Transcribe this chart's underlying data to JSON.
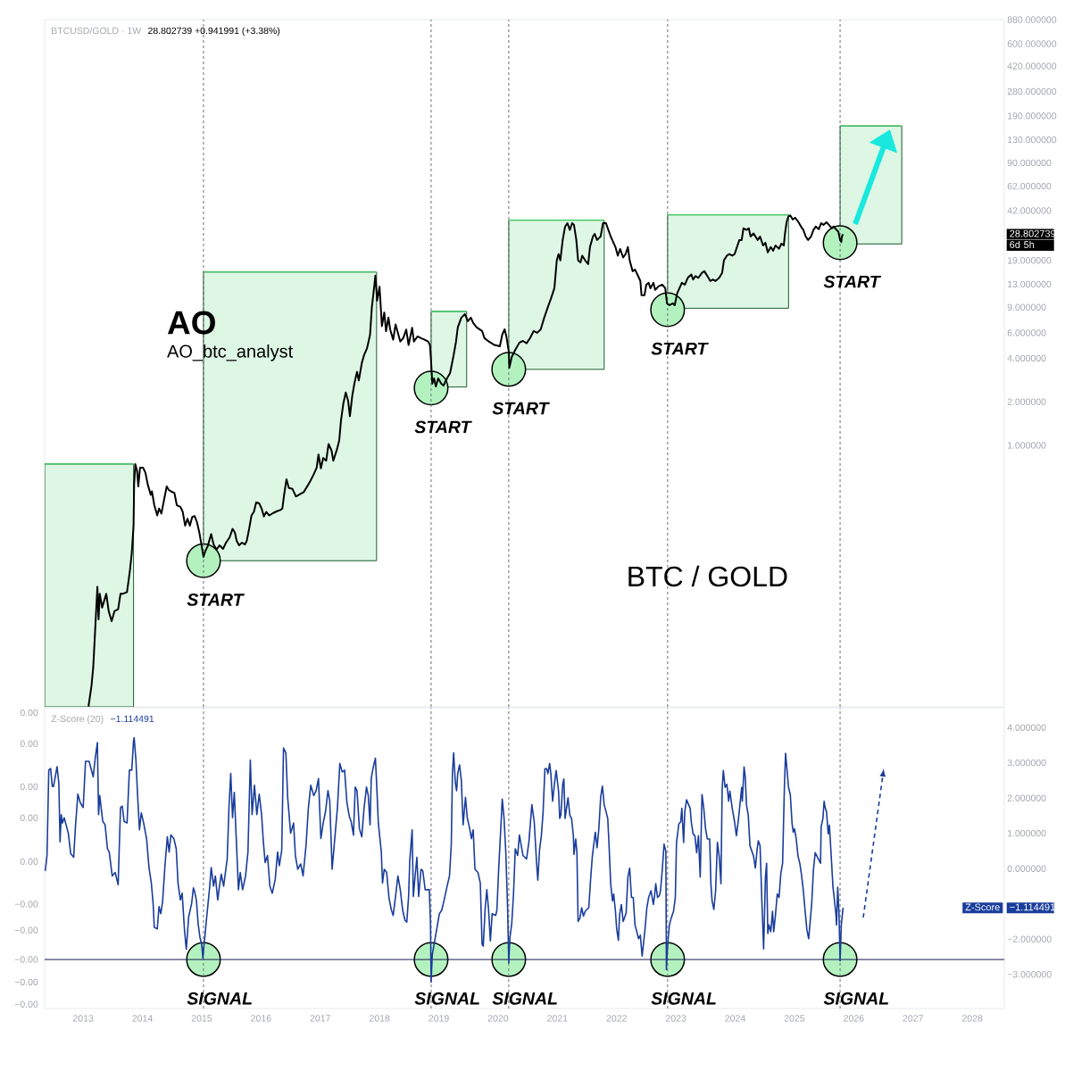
{
  "chart_data": [
    {
      "type": "line",
      "title": "BTCUSD/GOLD · 1W",
      "subtitle": "28.802739 +0.941991 (+3.38%)",
      "annotations": [
        "AO",
        "AO_btc_analyst",
        "BTC / GOLD",
        {
          "text": "START",
          "x": 2015.03,
          "y": 0.159
        },
        {
          "text": "START",
          "x": 2018.87,
          "y": 2.49
        },
        {
          "text": "START",
          "x": 2020.18,
          "y": 3.35
        },
        {
          "text": "START",
          "x": 2022.86,
          "y": 8.67
        },
        {
          "text": "START",
          "x": 2025.77,
          "y": 25.2
        },
        "28.802739",
        "6d 5h"
      ],
      "xlim": [
        2012.35,
        2028.54
      ],
      "ylim": [
        0.0155,
        880
      ],
      "log": "y",
      "tick_labels": "y",
      "yticks": [
        {
          "value": 880,
          "label": "880.000000"
        },
        {
          "value": 600,
          "label": "600.000000"
        },
        {
          "value": 420,
          "label": "420.000000"
        },
        {
          "value": 280,
          "label": "280.000000"
        },
        {
          "value": 190,
          "label": "190.000000"
        },
        {
          "value": 130,
          "label": "130.000000"
        },
        {
          "value": 90,
          "label": "90.000000"
        },
        {
          "value": 62,
          "label": "62.000000"
        },
        {
          "value": 42,
          "label": "42.000000"
        },
        {
          "value": 19,
          "label": "19.000000"
        },
        {
          "value": 13,
          "label": "13.000000"
        },
        {
          "value": 9,
          "label": "9.000000"
        },
        {
          "value": 6,
          "label": "6.000000"
        },
        {
          "value": 4,
          "label": "4.000000"
        },
        {
          "value": 2,
          "label": "2.000000"
        },
        {
          "value": 1,
          "label": "1.000000"
        }
      ],
      "ref_lines": [
        {
          "axis": "x",
          "value": 2015.03,
          "color": "#6a6d78",
          "line_style": "dashed"
        },
        {
          "axis": "x",
          "value": 2018.87,
          "color": "#6a6d78",
          "line_style": "dashed"
        },
        {
          "axis": "x",
          "value": 2020.18,
          "color": "#6a6d78",
          "line_style": "dashed"
        },
        {
          "axis": "x",
          "value": 2022.86,
          "color": "#6a6d78",
          "line_style": "dashed"
        },
        {
          "axis": "x",
          "value": 2025.77,
          "color": "#6a6d78",
          "line_style": "dashed"
        }
      ],
      "series": [
        {
          "type": "line",
          "color": "#3ccf63",
          "x": [
            2012.35,
            2013.85
          ],
          "values": [
            0.742,
            0.742
          ],
          "lower": [
            0.0155,
            0.0155
          ],
          "upper": [
            0.742,
            0.742
          ]
        },
        {
          "type": "line",
          "color": "#3ccf63",
          "x": [
            2015.03,
            2017.95
          ],
          "values": [
            15.8,
            15.8
          ],
          "lower": [
            0.159,
            0.159
          ],
          "upper": [
            15.8,
            15.8
          ]
        },
        {
          "type": "line",
          "color": "#3ccf63",
          "x": [
            2018.87,
            2019.47
          ],
          "values": [
            8.43,
            8.43
          ],
          "lower": [
            2.53,
            2.53
          ],
          "upper": [
            8.43,
            8.43
          ]
        },
        {
          "type": "line",
          "color": "#3ccf63",
          "x": [
            2020.18,
            2021.79
          ],
          "values": [
            36.1,
            36.1
          ],
          "lower": [
            3.35,
            3.35
          ],
          "upper": [
            36.1,
            36.1
          ]
        },
        {
          "type": "line",
          "color": "#3ccf63",
          "x": [
            2022.86,
            2024.9
          ],
          "values": [
            39.3,
            39.3
          ],
          "lower": [
            8.87,
            8.87
          ],
          "upper": [
            39.3,
            39.3
          ]
        },
        {
          "type": "line",
          "color": "#3ccf63",
          "x": [
            2025.77,
            2026.81
          ],
          "values": [
            161.7,
            161.7
          ],
          "lower": [
            24.7,
            24.7
          ],
          "upper": [
            161.7,
            161.7
          ]
        },
        {
          "type": "scatter",
          "marker": "circle",
          "color": "#b3f2bf",
          "x": [
            2015.03,
            2018.87,
            2020.18,
            2022.86,
            2025.77
          ],
          "values": [
            0.159,
            2.49,
            3.35,
            8.67,
            25.2
          ]
        },
        {
          "type": "line",
          "color": "#000000",
          "x": [
            2013.09,
            2013.14,
            2013.17,
            2013.24,
            2013.26,
            2013.28,
            2013.32,
            2013.39,
            2013.43,
            2013.48,
            2013.53,
            2013.59,
            2013.63,
            2013.67,
            2013.74,
            2013.79,
            2013.82,
            2013.85,
            2013.86,
            2013.88,
            2013.91,
            2013.93,
            2013.96,
            2014.01,
            2014.05,
            2014.09,
            2014.14,
            2014.16,
            2014.2,
            2014.25,
            2014.28,
            2014.32,
            2014.37,
            2014.41,
            2014.44,
            2014.48,
            2014.54,
            2014.58,
            2014.64,
            2014.68,
            2014.72,
            2014.76,
            2014.8,
            2014.84,
            2014.88,
            2014.92,
            2014.96,
            2015.0,
            2015.03,
            2015.06,
            2015.1,
            2015.16,
            2015.2,
            2015.25,
            2015.3,
            2015.36,
            2015.41,
            2015.47,
            2015.52,
            2015.56,
            2015.59,
            2015.63,
            2015.68,
            2015.73,
            2015.76,
            2015.8,
            2015.84,
            2015.88,
            2015.92,
            2015.97,
            2016.01,
            2016.05,
            2016.09,
            2016.14,
            2016.2,
            2016.27,
            2016.33,
            2016.36,
            2016.39,
            2016.43,
            2016.47,
            2016.53,
            2016.59,
            2016.66,
            2016.72,
            2016.78,
            2016.83,
            2016.89,
            2016.94,
            2016.97,
            2017.01,
            2017.05,
            2017.1,
            2017.14,
            2017.19,
            2017.22,
            2017.28,
            2017.32,
            2017.35,
            2017.39,
            2017.43,
            2017.47,
            2017.5,
            2017.54,
            2017.58,
            2017.62,
            2017.65,
            2017.7,
            2017.74,
            2017.79,
            2017.84,
            2017.87,
            2017.91,
            2017.93,
            2017.96,
            2018.0,
            2018.04,
            2018.08,
            2018.11,
            2018.15,
            2018.18,
            2018.23,
            2018.27,
            2018.31,
            2018.35,
            2018.4,
            2018.45,
            2018.49,
            2018.55,
            2018.58,
            2018.64,
            2018.7,
            2018.76,
            2018.82,
            2018.85,
            2018.87,
            2018.89,
            2018.92,
            2018.95,
            2018.99,
            2019.04,
            2019.08,
            2019.13,
            2019.19,
            2019.25,
            2019.29,
            2019.32,
            2019.38,
            2019.44,
            2019.49,
            2019.54,
            2019.58,
            2019.64,
            2019.73,
            2019.77,
            2019.85,
            2019.94,
            2020.03,
            2020.07,
            2020.11,
            2020.14,
            2020.18,
            2020.19,
            2020.23,
            2020.29,
            2020.36,
            2020.42,
            2020.48,
            2020.54,
            2020.6,
            2020.66,
            2020.72,
            2020.77,
            2020.83,
            2020.89,
            2020.95,
            2020.99,
            2021.02,
            2021.05,
            2021.09,
            2021.13,
            2021.17,
            2021.21,
            2021.25,
            2021.28,
            2021.32,
            2021.35,
            2021.39,
            2021.42,
            2021.47,
            2021.52,
            2021.55,
            2021.6,
            2021.63,
            2021.67,
            2021.73,
            2021.77,
            2021.82,
            2021.86,
            2021.9,
            2021.98,
            2022.02,
            2022.06,
            2022.11,
            2022.15,
            2022.19,
            2022.22,
            2022.27,
            2022.31,
            2022.35,
            2022.4,
            2022.42,
            2022.47,
            2022.5,
            2022.54,
            2022.57,
            2022.62,
            2022.65,
            2022.71,
            2022.77,
            2022.82,
            2022.85,
            2022.89,
            2022.95,
            2022.98,
            2023.02,
            2023.06,
            2023.1,
            2023.15,
            2023.2,
            2023.26,
            2023.29,
            2023.33,
            2023.38,
            2023.44,
            2023.48,
            2023.53,
            2023.58,
            2023.62,
            2023.67,
            2023.73,
            2023.78,
            2023.81,
            2023.86,
            2023.9,
            2023.95,
            2023.99,
            2024.03,
            2024.07,
            2024.11,
            2024.14,
            2024.19,
            2024.23,
            2024.26,
            2024.31,
            2024.38,
            2024.42,
            2024.47,
            2024.51,
            2024.55,
            2024.6,
            2024.64,
            2024.68,
            2024.74,
            2024.78,
            2024.82,
            2024.84,
            2024.87,
            2024.9,
            2024.93,
            2024.97,
            2025.01,
            2025.06,
            2025.11,
            2025.15,
            2025.19,
            2025.23,
            2025.28,
            2025.32,
            2025.36,
            2025.41,
            2025.45,
            2025.49,
            2025.54,
            2025.58,
            2025.63,
            2025.66,
            2025.71,
            2025.74,
            2025.77,
            2025.79,
            2025.8,
            2025.82
          ],
          "values": [
            0.0156,
            0.0216,
            0.0291,
            0.105,
            0.0624,
            0.0938,
            0.0753,
            0.0938,
            0.0714,
            0.0607,
            0.0714,
            0.0733,
            0.0938,
            0.0938,
            0.0964,
            0.137,
            0.18,
            0.278,
            0.535,
            0.741,
            0.664,
            0.52,
            0.701,
            0.701,
            0.646,
            0.535,
            0.454,
            0.48,
            0.385,
            0.327,
            0.365,
            0.337,
            0.43,
            0.52,
            0.493,
            0.48,
            0.467,
            0.385,
            0.375,
            0.346,
            0.278,
            0.31,
            0.278,
            0.319,
            0.324,
            0.294,
            0.249,
            0.2,
            0.169,
            0.185,
            0.2,
            0.243,
            0.206,
            0.19,
            0.203,
            0.192,
            0.212,
            0.23,
            0.264,
            0.249,
            0.218,
            0.203,
            0.212,
            0.206,
            0.218,
            0.264,
            0.327,
            0.346,
            0.403,
            0.396,
            0.365,
            0.322,
            0.346,
            0.327,
            0.339,
            0.35,
            0.357,
            0.365,
            0.454,
            0.581,
            0.506,
            0.5,
            0.442,
            0.459,
            0.474,
            0.52,
            0.564,
            0.63,
            0.701,
            0.863,
            0.693,
            0.817,
            0.782,
            1.02,
            0.92,
            0.782,
            0.931,
            1.08,
            1.49,
            1.95,
            2.32,
            2.03,
            1.59,
            2.2,
            2.73,
            3.22,
            2.81,
            3.69,
            4.22,
            4.7,
            5.82,
            9.0,
            12.5,
            14.9,
            10.0,
            12.5,
            6.67,
            8.29,
            6.15,
            7.64,
            6.32,
            5.37,
            6.85,
            5.98,
            5.22,
            5.51,
            6.32,
            4.94,
            6.49,
            5.22,
            5.66,
            5.51,
            5.37,
            5.22,
            4.94,
            3.8,
            2.67,
            2.9,
            2.55,
            2.9,
            2.67,
            2.59,
            2.86,
            3.16,
            4.2,
            5.2,
            6.53,
            7.64,
            8.08,
            7.21,
            7.64,
            7.01,
            6.53,
            6.17,
            5.51,
            5.2,
            4.94,
            4.84,
            5.82,
            6.34,
            5.66,
            4.45,
            3.44,
            4.08,
            4.57,
            5.13,
            5.27,
            5.08,
            5.52,
            6.17,
            6.0,
            6.34,
            7.45,
            8.8,
            10.3,
            12.2,
            19.0,
            21.0,
            19.0,
            26.3,
            32.5,
            34.4,
            30.9,
            34.4,
            33.5,
            26.3,
            19.0,
            18.4,
            20.5,
            19.0,
            17.9,
            23.5,
            27.8,
            29.0,
            26.3,
            27.8,
            34.4,
            34.4,
            30.9,
            27.8,
            23.5,
            20.5,
            22.8,
            19.9,
            21.0,
            23.5,
            19.0,
            16.0,
            16.4,
            15.2,
            13.7,
            10.9,
            10.9,
            12.9,
            13.3,
            12.2,
            13.3,
            11.9,
            12.6,
            12.9,
            12.2,
            9.58,
            9.31,
            9.58,
            9.31,
            11.2,
            12.2,
            13.3,
            12.9,
            14.4,
            15.2,
            14.0,
            14.8,
            14.4,
            15.6,
            16.0,
            14.8,
            13.7,
            14.0,
            13.7,
            14.4,
            15.6,
            19.0,
            20.5,
            21.0,
            20.5,
            21.0,
            23.5,
            26.3,
            26.3,
            31.7,
            30.9,
            31.7,
            27.8,
            29.2,
            26.3,
            27.8,
            24.1,
            25.2,
            21.6,
            23.5,
            22.2,
            24.1,
            22.9,
            24.8,
            24.1,
            29.2,
            35.4,
            38.4,
            38.9,
            36.5,
            37.5,
            35.4,
            32.6,
            30.9,
            27.8,
            26.3,
            27.8,
            30.9,
            32.6,
            31.2,
            34.4,
            33.5,
            34.9,
            33.5,
            31.7,
            32.6,
            30.9,
            30.1,
            26.3,
            25.5,
            27.8,
            28.802739
          ]
        }
      ]
    },
    {
      "type": "line",
      "title": "Z-Score (20)",
      "subtitle": "−1.114491",
      "annotations": [
        {
          "text": "SIGNAL",
          "x": 2015.03,
          "y": -2.58
        },
        {
          "text": "SIGNAL",
          "x": 2018.87,
          "y": -2.58
        },
        {
          "text": "SIGNAL",
          "x": 2020.18,
          "y": -2.58
        },
        {
          "text": "SIGNAL",
          "x": 2022.86,
          "y": -2.58
        },
        {
          "text": "SIGNAL",
          "x": 2025.77,
          "y": -2.58
        },
        "−1.114491"
      ],
      "xlim": [
        2012.35,
        2028.54
      ],
      "xticks": [
        2013,
        2014,
        2015,
        2016,
        2017,
        2018,
        2019,
        2020,
        2021,
        2022,
        2023,
        2024,
        2025,
        2026,
        2027,
        2028
      ],
      "ylim": [
        -3.97,
        4.56
      ],
      "yticks": [
        {
          "value": 4,
          "label": "4.000000"
        },
        {
          "value": 3,
          "label": "3.000000"
        },
        {
          "value": 2,
          "label": "2.000000"
        },
        {
          "value": 1,
          "label": "1.000000"
        },
        {
          "value": 0,
          "label": "0.000000"
        },
        {
          "value": -2,
          "label": "−2.000000"
        },
        {
          "value": -3,
          "label": "−3.000000"
        }
      ],
      "y2lim": [
        -0.00397,
        0.00456
      ],
      "y2ticks": [
        {
          "value": 0.00442,
          "label": "0.00"
        },
        {
          "value": 0.00354,
          "label": "0.00"
        },
        {
          "value": 0.00232,
          "label": "0.00"
        },
        {
          "value": 0.00144,
          "label": "0.00"
        },
        {
          "value": 0.0002,
          "label": "0.00"
        },
        {
          "value": -0.00101,
          "label": "−0.00"
        },
        {
          "value": -0.00175,
          "label": "−0.00"
        },
        {
          "value": -0.00258,
          "label": "−0.00"
        },
        {
          "value": -0.00322,
          "label": "−0.00"
        },
        {
          "value": -0.00385,
          "label": "−0.00"
        }
      ],
      "ref_lines": [
        {
          "axis": "x",
          "value": 2015.03,
          "color": "#6a6d78",
          "line_style": "dashed"
        },
        {
          "axis": "x",
          "value": 2018.87,
          "color": "#6a6d78",
          "line_style": "dashed"
        },
        {
          "axis": "x",
          "value": 2020.18,
          "color": "#6a6d78",
          "line_style": "dashed"
        },
        {
          "axis": "x",
          "value": 2022.86,
          "color": "#6a6d78",
          "line_style": "dashed"
        },
        {
          "axis": "x",
          "value": 2025.77,
          "color": "#6a6d78",
          "line_style": "dashed"
        },
        {
          "axis": "y",
          "value": -2.58,
          "color": "#131a4f",
          "line_style": "solid"
        }
      ],
      "series": [
        {
          "type": "scatter",
          "marker": "circle",
          "color": "#b3f2bf",
          "x": [
            2015.03,
            2018.87,
            2020.18,
            2022.86,
            2025.77
          ],
          "values": [
            -2.58,
            -2.58,
            -2.58,
            -2.58,
            -2.58
          ]
        },
        {
          "type": "line",
          "name": "Z-Score",
          "color": "#1a3d9c",
          "x": [
            2012.36,
            2012.39,
            2012.42,
            2012.45,
            2012.48,
            2012.5,
            2012.56,
            2012.59,
            2012.61,
            2012.63,
            2012.65,
            2012.68,
            2012.75,
            2012.79,
            2012.84,
            2012.87,
            2012.91,
            2012.95,
            2013.0,
            2013.04,
            2013.1,
            2013.17,
            2013.2,
            2013.24,
            2013.26,
            2013.28,
            2013.33,
            2013.37,
            2013.41,
            2013.44,
            2013.49,
            2013.54,
            2013.59,
            2013.63,
            2013.66,
            2013.69,
            2013.74,
            2013.78,
            2013.82,
            2013.85,
            2013.86,
            2013.89,
            2013.92,
            2013.95,
            2013.98,
            2014.02,
            2014.07,
            2014.11,
            2014.15,
            2014.18,
            2014.2,
            2014.25,
            2014.28,
            2014.31,
            2014.34,
            2014.38,
            2014.42,
            2014.45,
            2014.48,
            2014.53,
            2014.57,
            2014.6,
            2014.64,
            2014.67,
            2014.71,
            2014.74,
            2014.78,
            2014.83,
            2014.86,
            2014.88,
            2014.91,
            2014.94,
            2014.97,
            2015.0,
            2015.02,
            2015.04,
            2015.06,
            2015.09,
            2015.13,
            2015.16,
            2015.2,
            2015.23,
            2015.27,
            2015.3,
            2015.33,
            2015.37,
            2015.4,
            2015.43,
            2015.46,
            2015.49,
            2015.52,
            2015.55,
            2015.58,
            2015.62,
            2015.65,
            2015.69,
            2015.74,
            2015.78,
            2015.82,
            2015.85,
            2015.89,
            2015.93,
            2015.97,
            2016.01,
            2016.04,
            2016.07,
            2016.11,
            2016.15,
            2016.19,
            2016.24,
            2016.28,
            2016.31,
            2016.35,
            2016.38,
            2016.42,
            2016.45,
            2016.5,
            2016.55,
            2016.58,
            2016.62,
            2016.67,
            2016.71,
            2016.76,
            2016.8,
            2016.84,
            2016.89,
            2016.93,
            2016.97,
            2017.01,
            2017.05,
            2017.09,
            2017.13,
            2017.16,
            2017.2,
            2017.25,
            2017.29,
            2017.33,
            2017.37,
            2017.41,
            2017.45,
            2017.49,
            2017.52,
            2017.56,
            2017.59,
            2017.62,
            2017.66,
            2017.7,
            2017.74,
            2017.78,
            2017.81,
            2017.84,
            2017.86,
            2017.89,
            2017.93,
            2017.95,
            2017.98,
            2018.03,
            2018.05,
            2018.08,
            2018.12,
            2018.16,
            2018.2,
            2018.23,
            2018.27,
            2018.31,
            2018.35,
            2018.39,
            2018.43,
            2018.46,
            2018.49,
            2018.51,
            2018.55,
            2018.57,
            2018.6,
            2018.63,
            2018.66,
            2018.7,
            2018.73,
            2018.77,
            2018.84,
            2018.86,
            2018.87,
            2018.89,
            2018.92,
            2018.97,
            2019.01,
            2019.05,
            2019.09,
            2019.14,
            2019.18,
            2019.21,
            2019.23,
            2019.25,
            2019.28,
            2019.3,
            2019.32,
            2019.35,
            2019.38,
            2019.41,
            2019.45,
            2019.48,
            2019.52,
            2019.55,
            2019.58,
            2019.61,
            2019.66,
            2019.7,
            2019.73,
            2019.75,
            2019.78,
            2019.81,
            2019.84,
            2019.87,
            2019.9,
            2019.96,
            2019.98,
            2020.01,
            2020.05,
            2020.07,
            2020.1,
            2020.13,
            2020.16,
            2020.18,
            2020.2,
            2020.23,
            2020.26,
            2020.29,
            2020.33,
            2020.36,
            2020.42,
            2020.48,
            2020.52,
            2020.57,
            2020.61,
            2020.65,
            2020.67,
            2020.7,
            2020.73,
            2020.76,
            2020.79,
            2020.82,
            2020.84,
            2020.87,
            2020.89,
            2020.92,
            2020.95,
            2020.98,
            2021.02,
            2021.04,
            2021.06,
            2021.09,
            2021.11,
            2021.13,
            2021.18,
            2021.21,
            2021.24,
            2021.27,
            2021.28,
            2021.31,
            2021.33,
            2021.35,
            2021.38,
            2021.41,
            2021.44,
            2021.47,
            2021.53,
            2021.56,
            2021.59,
            2021.64,
            2021.67,
            2021.7,
            2021.73,
            2021.76,
            2021.79,
            2021.82,
            2021.85,
            2021.87,
            2021.9,
            2021.93,
            2021.95,
            2021.98,
            2022.0,
            2022.03,
            2022.05,
            2022.08,
            2022.11,
            2022.16,
            2022.19,
            2022.22,
            2022.25,
            2022.28,
            2022.31,
            2022.34,
            2022.37,
            2022.4,
            2022.43,
            2022.45,
            2022.48,
            2022.51,
            2022.54,
            2022.58,
            2022.62,
            2022.64,
            2022.66,
            2022.69,
            2022.72,
            2022.74,
            2022.77,
            2022.8,
            2022.83,
            2022.84,
            2022.86,
            2022.89,
            2022.92,
            2022.96,
            2022.99,
            2023.01,
            2023.05,
            2023.08,
            2023.1,
            2023.13,
            2023.15,
            2023.18,
            2023.24,
            2023.26,
            2023.29,
            2023.32,
            2023.35,
            2023.38,
            2023.41,
            2023.44,
            2023.47,
            2023.5,
            2023.53,
            2023.57,
            2023.59,
            2023.61,
            2023.64,
            2023.67,
            2023.7,
            2023.73,
            2023.76,
            2023.78,
            2023.8,
            2023.83,
            2023.86,
            2023.89,
            2023.91,
            2023.95,
            2023.99,
            2024.02,
            2024.05,
            2024.08,
            2024.11,
            2024.12,
            2024.15,
            2024.17,
            2024.19,
            2024.22,
            2024.25,
            2024.31,
            2024.34,
            2024.37,
            2024.39,
            2024.42,
            2024.45,
            2024.48,
            2024.51,
            2024.53,
            2024.55,
            2024.57,
            2024.6,
            2024.63,
            2024.65,
            2024.68,
            2024.71,
            2024.74,
            2024.77,
            2024.8,
            2024.83,
            2024.85,
            2024.87,
            2024.9,
            2024.93,
            2024.96,
            2024.98,
            2025.0,
            2025.03,
            2025.06,
            2025.09,
            2025.12,
            2025.15,
            2025.18,
            2025.21,
            2025.24,
            2025.26,
            2025.29,
            2025.32,
            2025.35,
            2025.38,
            2025.44,
            2025.45,
            2025.48,
            2025.5,
            2025.52,
            2025.54,
            2025.57,
            2025.59,
            2025.62,
            2025.65,
            2025.67,
            2025.7,
            2025.71,
            2025.73,
            2025.75,
            2025.77,
            2025.79,
            2025.82
          ],
          "values": [
            -0.07,
            0.37,
            2.79,
            2.84,
            2.33,
            2.33,
            2.89,
            2.41,
            0.76,
            1.53,
            1.29,
            1.44,
            1.0,
            0.42,
            0.32,
            1.19,
            2.11,
            1.87,
            1.73,
            3.04,
            3.04,
            2.6,
            3.08,
            3.57,
            1.53,
            2.07,
            1.34,
            1.24,
            0.56,
            0.47,
            -0.21,
            -0.11,
            -0.46,
            1.73,
            1.77,
            1.34,
            1.29,
            2.79,
            2.79,
            3.62,
            3.71,
            3.08,
            2.02,
            1.1,
            1.58,
            1.29,
            0.85,
            0.03,
            -0.41,
            -0.99,
            -1.67,
            -1.71,
            -1.08,
            -1.28,
            -0.94,
            0.08,
            0.9,
            0.47,
            0.95,
            0.85,
            0.56,
            -0.41,
            -0.89,
            -0.7,
            -1.76,
            -2.29,
            -1.37,
            -0.99,
            -0.55,
            -0.65,
            -0.89,
            -1.57,
            -1.95,
            -2.15,
            -2.54,
            -2.15,
            -1.81,
            -1.28,
            -0.6,
            0.03,
            -0.5,
            -0.21,
            -0.89,
            -0.5,
            -0.16,
            -0.5,
            -0.11,
            0.27,
            1.73,
            2.7,
            1.44,
            2.16,
            0.95,
            -0.6,
            -0.11,
            -0.6,
            -0.21,
            0.47,
            3.08,
            1.53,
            2.36,
            1.53,
            2.11,
            1.53,
            0.76,
            0.17,
            0.37,
            -0.5,
            -0.7,
            -0.31,
            0.47,
            0.08,
            0.52,
            3.42,
            3.28,
            2.02,
            1.0,
            1.29,
            0.37,
            -0.02,
            0.13,
            -0.21,
            0.66,
            1.73,
            2.36,
            2.07,
            2.21,
            2.55,
            0.85,
            1.29,
            1.63,
            2.21,
            1.92,
            -0.02,
            0.95,
            1.73,
            2.98,
            2.74,
            2.79,
            1.87,
            1.48,
            1.34,
            0.95,
            2.31,
            2.21,
            1.14,
            0.9,
            1.73,
            2.31,
            2.07,
            1.24,
            2.55,
            2.84,
            3.13,
            2.45,
            1.29,
            0.47,
            -0.41,
            -0.02,
            -0.11,
            -0.84,
            -1.18,
            -1.33,
            -0.79,
            -0.21,
            -0.6,
            -1.18,
            -1.47,
            -1.52,
            -0.79,
            0.23,
            1.1,
            -0.79,
            -0.21,
            0.32,
            -0.79,
            -0.02,
            -0.07,
            -0.6,
            -0.6,
            -1.57,
            -3.22,
            -2.44,
            -2.15,
            -1.67,
            -1.28,
            -1.18,
            -0.89,
            -0.5,
            -0.21,
            0.66,
            2.7,
            3.28,
            2.41,
            2.21,
            2.7,
            2.94,
            2.5,
            1.24,
            2.02,
            1.44,
            1.14,
            0.85,
            1.1,
            -0.02,
            -0.11,
            -0.41,
            -2.15,
            -2.2,
            -1.18,
            -0.6,
            -1.18,
            -2.05,
            -1.28,
            -1.33,
            -1.18,
            -0.02,
            1.29,
            1.97,
            1.44,
            0.47,
            -1.08,
            -2.68,
            -1.95,
            -1.57,
            -0.74,
            0.56,
            0.37,
            0.95,
            0.37,
            0.27,
            0.76,
            1.81,
            1.32,
            0.15,
            -0.33,
            0.54,
            0.93,
            1.62,
            2.83,
            2.83,
            2.69,
            2.98,
            2.69,
            1.91,
            2.39,
            2.78,
            2.2,
            1.42,
            1.52,
            2.39,
            2.54,
            1.42,
            2.01,
            1.52,
            1.42,
            0.93,
            0.4,
            0.84,
            0.45,
            -1.5,
            -1.41,
            -1.11,
            -1.35,
            -1.21,
            -1.11,
            -0.33,
            0.35,
            1.03,
            0.59,
            1.13,
            2.01,
            2.34,
            1.81,
            1.62,
            1.42,
            0.74,
            -0.43,
            -0.92,
            -0.72,
            -1.21,
            -1.7,
            -2.04,
            -1.31,
            -1.02,
            -1.5,
            -1.26,
            -0.24,
            0.01,
            -0.82,
            -0.82,
            -1.6,
            -1.79,
            -1.99,
            -1.89,
            -2.48,
            -2.18,
            -1.7,
            -1.11,
            -0.82,
            -0.63,
            -1.02,
            -0.77,
            -0.43,
            -0.82,
            -0.77,
            -0.63,
            -0.04,
            0.69,
            0.49,
            -2.87,
            -2.18,
            -1.6,
            -1.41,
            -1.21,
            -0.82,
            0.74,
            1.27,
            1.32,
            1.71,
            0.74,
            1.62,
            1.95,
            1.71,
            1.32,
            0.98,
            0.93,
            0.45,
            0.93,
            -0.24,
            2.1,
            1.71,
            1.13,
            0.84,
            0.84,
            -0.43,
            -0.92,
            -1.16,
            -0.63,
            0.74,
            0.35,
            -0.43,
            2.25,
            2.78,
            2.3,
            2.39,
            1.91,
            2.2,
            1.71,
            1.32,
            0.93,
            1.32,
            1.81,
            2.3,
            1.91,
            2.88,
            2.59,
            1.81,
            1.52,
            0.64,
            0.35,
            0.01,
            0.54,
            0.79,
            0.64,
            -0.92,
            -2.28,
            -0.24,
            0.15,
            -1.84,
            -1.6,
            -1.79,
            -1.21,
            -1.79,
            -1.31,
            -0.72,
            -0.82,
            -0.14,
            0.15,
            2.3,
            3.27,
            2.88,
            2.3,
            2.1,
            1.27,
            1.03,
            1.13,
            0.84,
            0.35,
            0.15,
            -0.19,
            -0.63,
            -1.21,
            -1.74,
            -1.99,
            -1.6,
            -1.02,
            -0.04,
            0.45,
            0.35,
            0.15,
            1.18,
            1.42,
            1.91,
            1.71,
            1.62,
            0.98,
            1.23,
            0.35,
            -0.53,
            -0.82,
            -1.31,
            -1.6,
            -0.53,
            -1.21,
            -2.62,
            -1.6,
            -1.114491
          ]
        }
      ]
    }
  ]
}
